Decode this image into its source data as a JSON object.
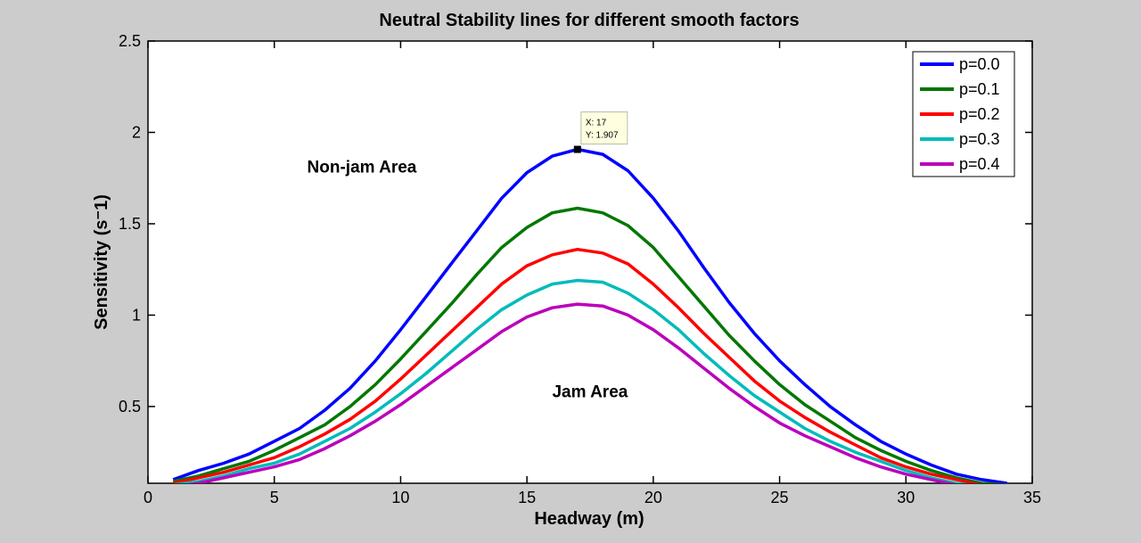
{
  "chart_data": {
    "type": "line",
    "title": "Neutral Stability lines for different smooth factors",
    "xlabel": "Headway (m)",
    "ylabel": "Sensitivity (s⁻1)",
    "xlim": [
      0,
      35
    ],
    "ylim": [
      0.08,
      2.5
    ],
    "xticks": [
      "0",
      "5",
      "10",
      "15",
      "20",
      "25",
      "30",
      "35"
    ],
    "xtick_values": [
      0,
      5,
      10,
      15,
      20,
      25,
      30,
      35
    ],
    "yticks": [
      "0.5",
      "1",
      "1.5",
      "2",
      "2.5"
    ],
    "ytick_values": [
      0.5,
      1,
      1.5,
      2,
      2.5
    ],
    "grid": false,
    "legend_position": "top-right",
    "x": [
      1,
      2,
      3,
      4,
      5,
      6,
      7,
      8,
      9,
      10,
      11,
      12,
      13,
      14,
      15,
      16,
      17,
      18,
      19,
      20,
      21,
      22,
      23,
      24,
      25,
      26,
      27,
      28,
      29,
      30,
      31,
      32,
      33,
      34
    ],
    "series": [
      {
        "name": "p=0.0",
        "color": "#0000ff",
        "values": [
          0.1,
          0.15,
          0.19,
          0.24,
          0.31,
          0.38,
          0.48,
          0.6,
          0.75,
          0.92,
          1.1,
          1.28,
          1.46,
          1.64,
          1.78,
          1.87,
          1.907,
          1.88,
          1.79,
          1.64,
          1.46,
          1.26,
          1.07,
          0.9,
          0.75,
          0.62,
          0.5,
          0.4,
          0.31,
          0.24,
          0.18,
          0.13,
          0.1,
          0.08
        ]
      },
      {
        "name": "p=0.1",
        "color": "#007700",
        "values": [
          0.09,
          0.12,
          0.16,
          0.2,
          0.26,
          0.33,
          0.4,
          0.5,
          0.62,
          0.76,
          0.91,
          1.06,
          1.22,
          1.37,
          1.48,
          1.56,
          1.585,
          1.56,
          1.49,
          1.37,
          1.21,
          1.05,
          0.89,
          0.75,
          0.62,
          0.51,
          0.42,
          0.33,
          0.26,
          0.2,
          0.15,
          0.11,
          0.08,
          0.07
        ]
      },
      {
        "name": "p=0.2",
        "color": "#ff0000",
        "values": [
          0.08,
          0.11,
          0.14,
          0.18,
          0.22,
          0.28,
          0.35,
          0.43,
          0.53,
          0.65,
          0.78,
          0.91,
          1.04,
          1.17,
          1.27,
          1.33,
          1.36,
          1.34,
          1.28,
          1.17,
          1.04,
          0.9,
          0.77,
          0.64,
          0.53,
          0.44,
          0.36,
          0.29,
          0.22,
          0.17,
          0.13,
          0.1,
          0.07,
          0.06
        ]
      },
      {
        "name": "p=0.3",
        "color": "#00bbbb",
        "values": [
          0.07,
          0.09,
          0.12,
          0.16,
          0.19,
          0.24,
          0.31,
          0.38,
          0.47,
          0.57,
          0.68,
          0.8,
          0.92,
          1.03,
          1.11,
          1.17,
          1.19,
          1.18,
          1.12,
          1.03,
          0.92,
          0.79,
          0.67,
          0.56,
          0.47,
          0.38,
          0.31,
          0.25,
          0.2,
          0.15,
          0.11,
          0.08,
          0.06,
          0.05
        ]
      },
      {
        "name": "p=0.4",
        "color": "#bb00bb",
        "values": [
          0.06,
          0.08,
          0.11,
          0.14,
          0.17,
          0.21,
          0.27,
          0.34,
          0.42,
          0.51,
          0.61,
          0.71,
          0.81,
          0.91,
          0.99,
          1.04,
          1.06,
          1.05,
          1.0,
          0.92,
          0.82,
          0.71,
          0.6,
          0.5,
          0.41,
          0.34,
          0.28,
          0.22,
          0.17,
          0.13,
          0.1,
          0.07,
          0.05,
          0.04
        ]
      }
    ],
    "annotations": [
      {
        "text": "Non-jam Area",
        "x": 6.3,
        "y": 1.78
      },
      {
        "text": "Jam Area",
        "x": 16,
        "y": 0.55
      }
    ],
    "datatip": {
      "x": 17,
      "y": 1.907,
      "line1": "X: 17",
      "line2": "Y: 1.907"
    }
  }
}
